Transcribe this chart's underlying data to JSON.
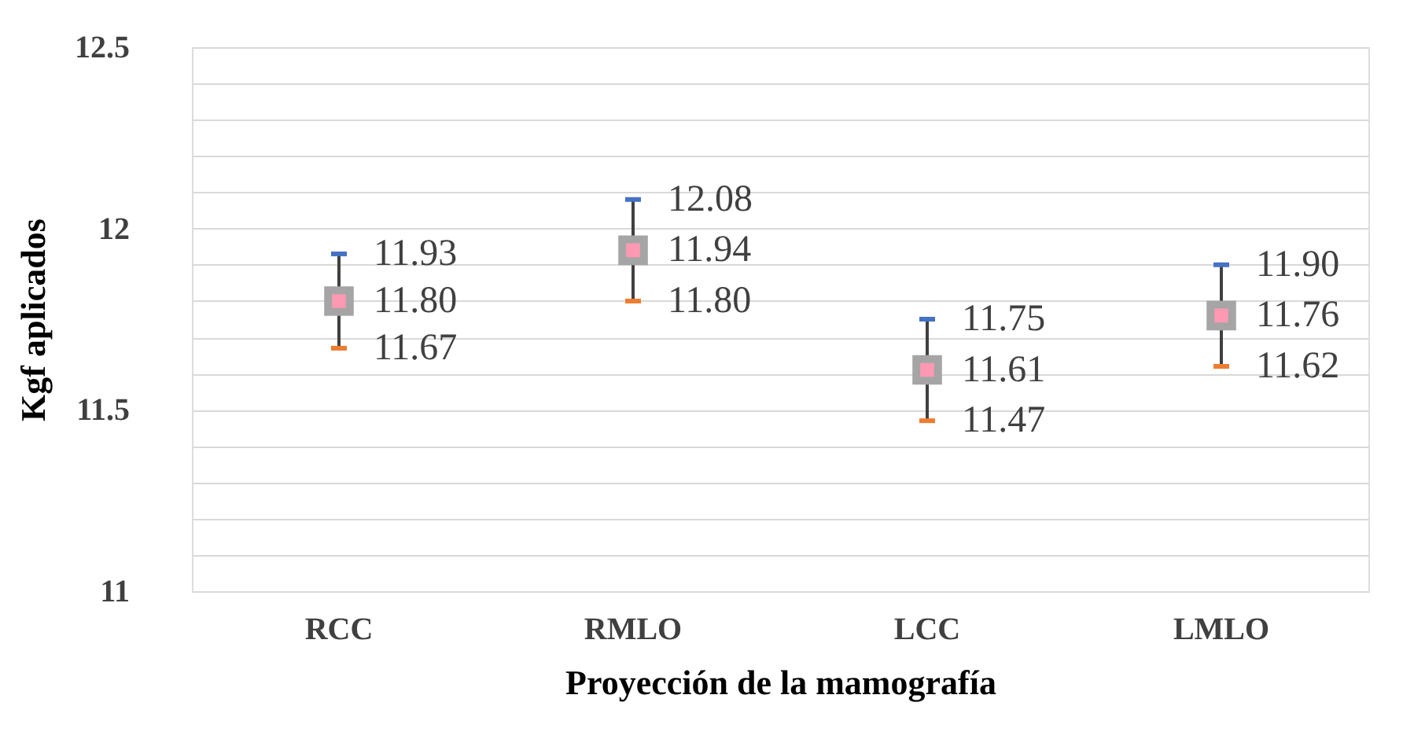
{
  "chart_data": {
    "type": "scatter",
    "xlabel": "Proyección de la mamografía",
    "ylabel": "Kgf aplicados",
    "categories": [
      "RCC",
      "RMLO",
      "LCC",
      "LMLO"
    ],
    "series": [
      {
        "color": "#a5a5a5",
        "marker": "square",
        "values": [
          11.8,
          11.94,
          11.61,
          11.76
        ],
        "value_labels": [
          "11.80",
          "11.94",
          "11.61",
          "11.76"
        ],
        "errors": [
          [
            11.67,
            11.93
          ],
          [
            11.8,
            12.08
          ],
          [
            11.47,
            11.75
          ],
          [
            11.62,
            11.9
          ]
        ]
      }
    ],
    "annotations": [
      {
        "text": "11.93",
        "x": "RCC",
        "y": 11.93
      },
      {
        "text": "11.67",
        "x": "RCC",
        "y": 11.67
      },
      {
        "text": "12.08",
        "x": "RMLO",
        "y": 12.08
      },
      {
        "text": "11.80",
        "x": "RMLO",
        "y": 11.8
      },
      {
        "text": "11.75",
        "x": "LCC",
        "y": 11.75
      },
      {
        "text": "11.47",
        "x": "LCC",
        "y": 11.47
      },
      {
        "text": "11.90",
        "x": "LMLO",
        "y": 11.9
      },
      {
        "text": "11.62",
        "x": "LMLO",
        "y": 11.62
      }
    ],
    "ylim": [
      11,
      12.5
    ],
    "yticks": [
      11,
      {
        "value": 11.1,
        "label": null
      },
      {
        "value": 11.2,
        "label": null
      },
      {
        "value": 11.3,
        "label": null
      },
      {
        "value": 11.4,
        "label": null
      },
      11.5,
      {
        "value": 11.6,
        "label": null
      },
      {
        "value": 11.7,
        "label": null
      },
      {
        "value": 11.8,
        "label": null
      },
      {
        "value": 11.9,
        "label": null
      },
      12,
      {
        "value": 12.1,
        "label": null
      },
      {
        "value": 12.2,
        "label": null
      },
      {
        "value": 12.3,
        "label": null
      },
      {
        "value": 12.4,
        "label": null
      },
      12.5
    ],
    "grid": "y"
  }
}
